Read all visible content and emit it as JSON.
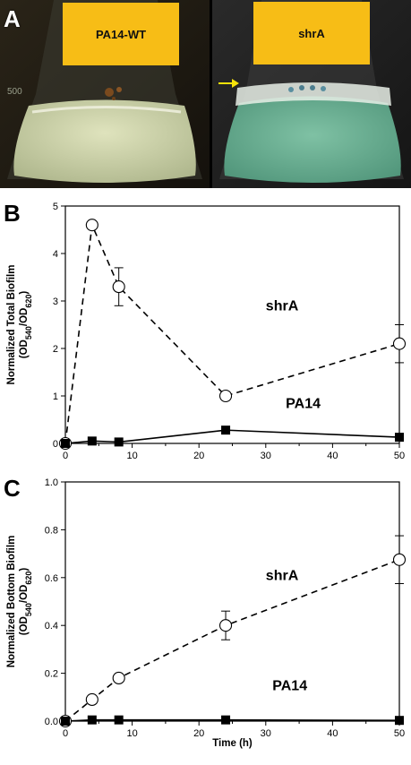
{
  "panel_a": {
    "letter": "A",
    "left_label": "PA14-WT",
    "right_label": "shrA",
    "colors": {
      "label_bg": "#f7bd16",
      "arrow": "#f5e20a"
    },
    "icons": [
      "arrow-right-icon"
    ]
  },
  "chart_data": [
    {
      "id": "B",
      "type": "line",
      "panel_letter": "B",
      "title": "",
      "xlabel": "",
      "ylabel_lines": [
        "Normalized Total Biofilm",
        "(OD540/OD620)"
      ],
      "ylabel_parts": {
        "main": "Normalized Total Biofilm",
        "open": "(OD",
        "sub1": "540",
        "slash": "/OD",
        "sub2": "620",
        "close": ")"
      },
      "xlim": [
        0,
        50
      ],
      "ylim": [
        0,
        5
      ],
      "xticks": [
        "0",
        "10",
        "20",
        "30",
        "40",
        "50"
      ],
      "yticks": [
        "0",
        "1",
        "2",
        "3",
        "4",
        "5"
      ],
      "series": [
        {
          "name": "shrA",
          "marker": "open-circle",
          "line": "dashed",
          "points": [
            {
              "x": 0,
              "y": 0
            },
            {
              "x": 4,
              "y": 4.6
            },
            {
              "x": 8,
              "y": 3.3,
              "err": 0.4
            },
            {
              "x": 24,
              "y": 1.0
            },
            {
              "x": 50,
              "y": 2.1,
              "err": 0.4
            }
          ]
        },
        {
          "name": "PA14",
          "marker": "filled-square",
          "line": "solid",
          "points": [
            {
              "x": 0,
              "y": 0
            },
            {
              "x": 4,
              "y": 0.05
            },
            {
              "x": 8,
              "y": 0.03
            },
            {
              "x": 24,
              "y": 0.28
            },
            {
              "x": 50,
              "y": 0.13
            }
          ]
        }
      ],
      "annotations": [
        {
          "text": "shrA",
          "x": 30,
          "y": 2.8
        },
        {
          "text": "PA14",
          "x": 33,
          "y": 0.75
        }
      ]
    },
    {
      "id": "C",
      "type": "line",
      "panel_letter": "C",
      "title": "",
      "xlabel": "Time (h)",
      "ylabel_lines": [
        "Normalized Bottom Biofilm",
        "(OD540/OD620)"
      ],
      "ylabel_parts": {
        "main": "Normalized Bottom Biofilm",
        "open": "(OD",
        "sub1": "540",
        "slash": "/OD",
        "sub2": "620",
        "close": ")"
      },
      "xlim": [
        0,
        50
      ],
      "ylim": [
        0,
        1.0
      ],
      "xticks": [
        "0",
        "10",
        "20",
        "30",
        "40",
        "50"
      ],
      "yticks": [
        "0.0",
        "0.2",
        "0.4",
        "0.6",
        "0.8",
        "1.0"
      ],
      "series": [
        {
          "name": "shrA",
          "marker": "open-circle",
          "line": "dashed",
          "points": [
            {
              "x": 0,
              "y": 0
            },
            {
              "x": 4,
              "y": 0.09
            },
            {
              "x": 8,
              "y": 0.18
            },
            {
              "x": 24,
              "y": 0.4,
              "err": 0.06
            },
            {
              "x": 50,
              "y": 0.675,
              "err": 0.1
            }
          ]
        },
        {
          "name": "PA14",
          "marker": "filled-square",
          "line": "solid",
          "points": [
            {
              "x": 0,
              "y": 0
            },
            {
              "x": 4,
              "y": 0.005
            },
            {
              "x": 8,
              "y": 0.005
            },
            {
              "x": 24,
              "y": 0.005
            },
            {
              "x": 50,
              "y": 0.003
            }
          ]
        }
      ],
      "annotations": [
        {
          "text": "shrA",
          "x": 30,
          "y": 0.59
        },
        {
          "text": "PA14",
          "x": 31,
          "y": 0.13
        }
      ]
    }
  ]
}
